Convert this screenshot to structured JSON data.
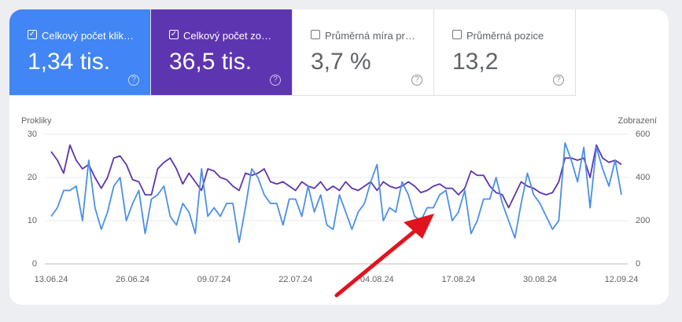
{
  "cards": [
    {
      "label": "Celkový počet klik…",
      "value": "1,34 tis.",
      "checked": true,
      "color": "#4285f4"
    },
    {
      "label": "Celkový počet zo…",
      "value": "36,5 tis.",
      "checked": true,
      "color": "#5e35b1"
    },
    {
      "label": "Průměrná míra pr…",
      "value": "3,7 %",
      "checked": false,
      "color": "#ffffff"
    },
    {
      "label": "Průměrná pozice",
      "value": "13,2",
      "checked": false,
      "color": "#ffffff"
    }
  ],
  "chart_data": {
    "type": "line",
    "y_label": "Prokliky",
    "y2_label": "Zobrazení",
    "grid": true,
    "categories": [
      "13.06.24",
      null,
      null,
      null,
      null,
      null,
      null,
      null,
      null,
      null,
      null,
      null,
      null,
      "26.06.24",
      null,
      null,
      null,
      null,
      null,
      null,
      null,
      null,
      null,
      null,
      null,
      null,
      "09.07.24",
      null,
      null,
      null,
      null,
      null,
      null,
      null,
      null,
      null,
      null,
      null,
      null,
      "22.07.24",
      null,
      null,
      null,
      null,
      null,
      null,
      null,
      null,
      null,
      null,
      null,
      null,
      "04.08.24",
      null,
      null,
      null,
      null,
      null,
      null,
      null,
      null,
      null,
      null,
      null,
      null,
      "17.08.24",
      null,
      null,
      null,
      null,
      null,
      null,
      null,
      null,
      null,
      null,
      null,
      null,
      "30.08.24",
      null,
      null,
      null,
      null,
      null,
      null,
      null,
      null,
      null,
      null,
      null,
      null,
      "12.09.24"
    ],
    "ylim": [
      0,
      30
    ],
    "yticks": [
      0,
      10,
      20,
      30
    ],
    "y2lim": [
      0,
      600
    ],
    "y2ticks": [
      0,
      200,
      400,
      600
    ],
    "series": [
      {
        "color": "#4a8fe7",
        "values": [
          11,
          13,
          17,
          17,
          18,
          10,
          24,
          13,
          8,
          12,
          18,
          20,
          10,
          14,
          17,
          7,
          15,
          16,
          18,
          11,
          9,
          14,
          12,
          7,
          22,
          11,
          13,
          11,
          14,
          14,
          5,
          13,
          22,
          20,
          16,
          14,
          14,
          9,
          15,
          15,
          11,
          18,
          12,
          16,
          9,
          8,
          16,
          12,
          8,
          12,
          14,
          19,
          23,
          10,
          13,
          12,
          19,
          16,
          11,
          10,
          13,
          13,
          16,
          17,
          10,
          12,
          17,
          7,
          10,
          15,
          15,
          20,
          14,
          10,
          6,
          14,
          21,
          16,
          14,
          11,
          8,
          10,
          28,
          24,
          19,
          27,
          13,
          27,
          22,
          18,
          24,
          16
        ]
      },
      {
        "color": "#5e35b1",
        "axis": "y2",
        "values": [
          520,
          480,
          420,
          550,
          480,
          440,
          460,
          400,
          350,
          400,
          490,
          500,
          460,
          390,
          380,
          320,
          320,
          440,
          470,
          490,
          440,
          370,
          420,
          380,
          340,
          440,
          430,
          400,
          390,
          360,
          340,
          420,
          410,
          420,
          440,
          380,
          370,
          380,
          360,
          340,
          380,
          360,
          350,
          380,
          340,
          360,
          340,
          380,
          350,
          340,
          360,
          380,
          340,
          380,
          360,
          350,
          360,
          380,
          360,
          330,
          340,
          360,
          370,
          350,
          350,
          320,
          350,
          430,
          410,
          410,
          360,
          330,
          320,
          260,
          320,
          380,
          360,
          350,
          330,
          320,
          330,
          380,
          490,
          490,
          480,
          490,
          400,
          550,
          490,
          470,
          480,
          460
        ]
      }
    ]
  }
}
